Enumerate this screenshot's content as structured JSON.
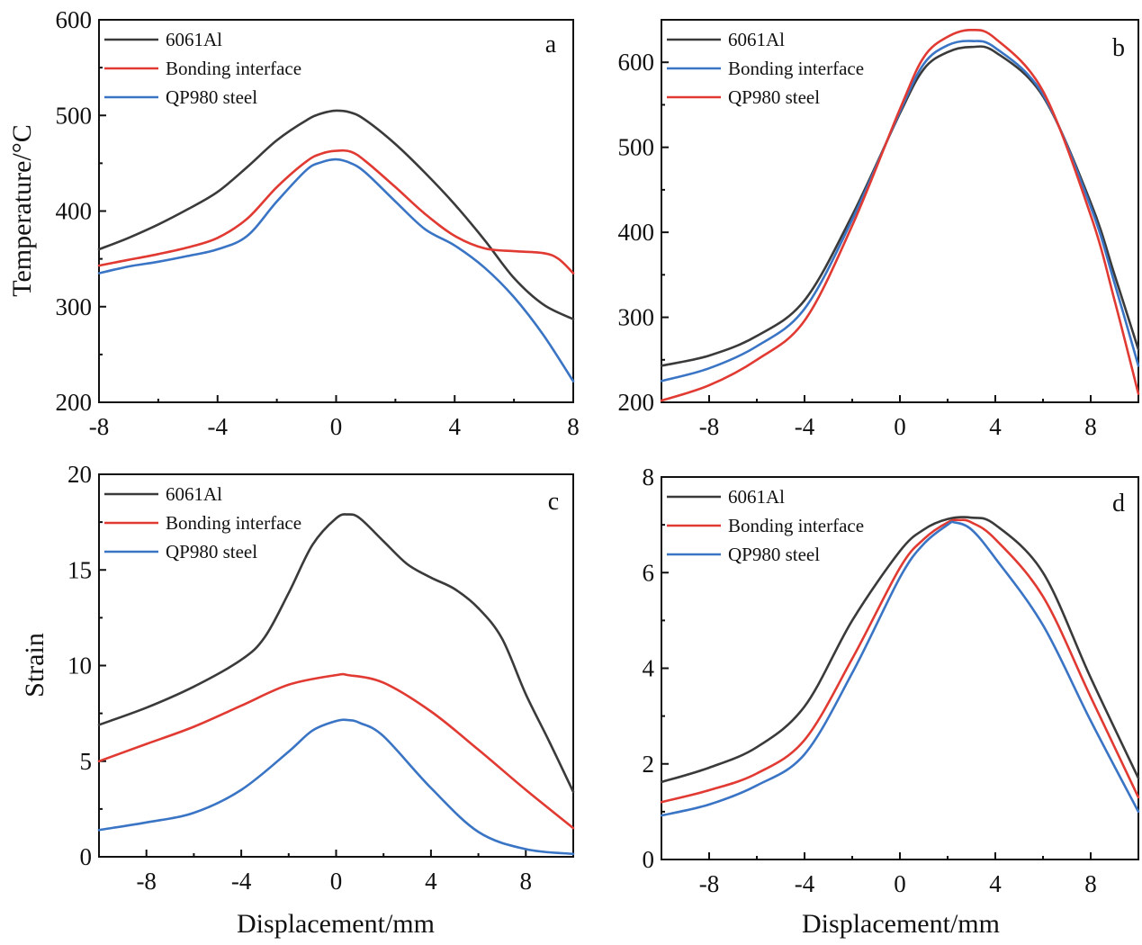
{
  "figure": {
    "background": "#ffffff"
  },
  "chart_data": [
    {
      "panel": "a",
      "type": "line",
      "xlabel": "",
      "ylabel": "Temperature/°C",
      "xlim": [
        -8,
        8
      ],
      "ylim": [
        200,
        600
      ],
      "xticks": [
        -8,
        -4,
        0,
        4,
        8
      ],
      "yticks": [
        200,
        300,
        400,
        500,
        600
      ],
      "grid": false,
      "legend": "top-left",
      "series": [
        {
          "name": "6061Al",
          "color": "#3a3a3a",
          "x": [
            -8,
            -7,
            -6,
            -5,
            -4,
            -3,
            -2,
            -1,
            -0.5,
            0,
            0.5,
            1,
            2,
            3,
            4,
            5,
            6,
            7,
            8
          ],
          "y": [
            360,
            372,
            386,
            402,
            420,
            446,
            474,
            495,
            502,
            505,
            503,
            495,
            470,
            440,
            407,
            370,
            330,
            302,
            287
          ]
        },
        {
          "name": "Bonding interface",
          "color": "#e03a32",
          "x": [
            -8,
            -7,
            -6,
            -5,
            -4,
            -3,
            -2,
            -1,
            -0.5,
            0,
            0.5,
            1,
            2,
            3,
            4,
            5,
            6,
            7,
            7.5,
            8
          ],
          "y": [
            343,
            349,
            355,
            362,
            372,
            392,
            425,
            452,
            460,
            463,
            462,
            452,
            425,
            397,
            374,
            361,
            358,
            356,
            350,
            335
          ]
        },
        {
          "name": "QP980 steel",
          "color": "#3a74c4",
          "x": [
            -8,
            -7,
            -6,
            -5,
            -4,
            -3,
            -2,
            -1,
            -0.5,
            0,
            0.5,
            1,
            2,
            3,
            4,
            5,
            6,
            7,
            8
          ],
          "y": [
            335,
            342,
            347,
            353,
            360,
            374,
            410,
            443,
            451,
            454,
            450,
            440,
            410,
            381,
            364,
            341,
            310,
            270,
            222
          ]
        }
      ]
    },
    {
      "panel": "b",
      "type": "line",
      "xlabel": "",
      "ylabel": "",
      "xlim": [
        -10,
        10
      ],
      "ylim": [
        200,
        650
      ],
      "xticks": [
        -8,
        -4,
        0,
        4,
        8
      ],
      "yticks": [
        200,
        300,
        400,
        500,
        600
      ],
      "grid": false,
      "legend": "top-left",
      "series": [
        {
          "name": "6061Al",
          "color": "#3a3a3a",
          "x": [
            -10,
            -8,
            -6,
            -4,
            -2,
            0,
            1,
            2,
            3,
            4,
            6,
            8,
            9,
            10
          ],
          "y": [
            243,
            255,
            278,
            320,
            420,
            540,
            592,
            612,
            618,
            612,
            560,
            435,
            350,
            262
          ]
        },
        {
          "name": "Bonding interface",
          "color": "#3a74c4",
          "x": [
            -10,
            -8,
            -6,
            -4,
            -2,
            0,
            1,
            2,
            3,
            4,
            6,
            8,
            9,
            10
          ],
          "y": [
            225,
            240,
            266,
            310,
            415,
            542,
            598,
            620,
            625,
            617,
            562,
            430,
            340,
            243
          ]
        },
        {
          "name": "QP980 steel",
          "color": "#e03a32",
          "x": [
            -10,
            -8,
            -6,
            -4,
            -2,
            0,
            1,
            2,
            3,
            4,
            6,
            8,
            9,
            10
          ],
          "y": [
            202,
            220,
            250,
            296,
            408,
            545,
            606,
            630,
            638,
            628,
            566,
            420,
            320,
            210
          ]
        }
      ]
    },
    {
      "panel": "c",
      "type": "line",
      "xlabel": "Displacement/mm",
      "ylabel": "Strain",
      "xlim": [
        -10,
        10
      ],
      "ylim": [
        0,
        20
      ],
      "xticks": [
        -8,
        -4,
        0,
        4,
        8
      ],
      "yticks": [
        0,
        5,
        10,
        15,
        20
      ],
      "grid": false,
      "legend": "top-left",
      "series": [
        {
          "name": "6061Al",
          "color": "#3a3a3a",
          "x": [
            -10,
            -8,
            -6,
            -4,
            -3,
            -2,
            -1,
            0,
            0.5,
            1,
            2,
            3,
            4,
            5,
            6,
            7,
            8,
            9,
            10
          ],
          "y": [
            6.9,
            7.8,
            8.9,
            10.3,
            11.5,
            13.8,
            16.3,
            17.7,
            17.9,
            17.7,
            16.5,
            15.3,
            14.6,
            14.0,
            13.0,
            11.4,
            8.5,
            6.0,
            3.4
          ]
        },
        {
          "name": "Bonding interface",
          "color": "#e03a32",
          "x": [
            -10,
            -8,
            -6,
            -4,
            -2,
            0,
            0.5,
            2,
            4,
            6,
            8,
            10
          ],
          "y": [
            5.0,
            5.9,
            6.8,
            7.9,
            9.0,
            9.5,
            9.5,
            9.1,
            7.6,
            5.6,
            3.5,
            1.5
          ]
        },
        {
          "name": "QP980 steel",
          "color": "#3a74c4",
          "x": [
            -10,
            -8,
            -6,
            -4,
            -2,
            -1,
            0,
            0.5,
            1,
            2,
            4,
            6,
            8,
            10
          ],
          "y": [
            1.4,
            1.8,
            2.3,
            3.5,
            5.5,
            6.6,
            7.1,
            7.15,
            7.0,
            6.3,
            3.6,
            1.3,
            0.4,
            0.15
          ]
        }
      ]
    },
    {
      "panel": "d",
      "type": "line",
      "xlabel": "Displacement/mm",
      "ylabel": "",
      "xlim": [
        -10,
        10
      ],
      "ylim": [
        0,
        8
      ],
      "xticks": [
        -8,
        -4,
        0,
        4,
        8
      ],
      "yticks": [
        0,
        2,
        4,
        6,
        8
      ],
      "grid": false,
      "legend": "top-left",
      "series": [
        {
          "name": "6061Al",
          "color": "#3a3a3a",
          "x": [
            -10,
            -8,
            -6,
            -4,
            -2,
            0,
            1,
            2,
            3,
            4,
            6,
            8,
            10
          ],
          "y": [
            1.62,
            1.92,
            2.35,
            3.2,
            5.0,
            6.45,
            6.9,
            7.12,
            7.15,
            7.0,
            6.0,
            3.8,
            1.7
          ]
        },
        {
          "name": "Bonding interface",
          "color": "#e03a32",
          "x": [
            -10,
            -8,
            -6,
            -4,
            -2,
            0,
            1,
            2,
            2.5,
            3,
            4,
            6,
            8,
            10
          ],
          "y": [
            1.2,
            1.45,
            1.8,
            2.5,
            4.2,
            6.1,
            6.7,
            7.05,
            7.1,
            7.05,
            6.7,
            5.5,
            3.4,
            1.3
          ]
        },
        {
          "name": "QP980 steel",
          "color": "#3a74c4",
          "x": [
            -10,
            -8,
            -6,
            -4,
            -2,
            0,
            1,
            2,
            2.3,
            3,
            4,
            6,
            8,
            10
          ],
          "y": [
            0.92,
            1.15,
            1.55,
            2.2,
            3.9,
            5.9,
            6.6,
            7.0,
            7.05,
            6.9,
            6.3,
            4.9,
            2.9,
            1.0
          ]
        }
      ]
    }
  ]
}
